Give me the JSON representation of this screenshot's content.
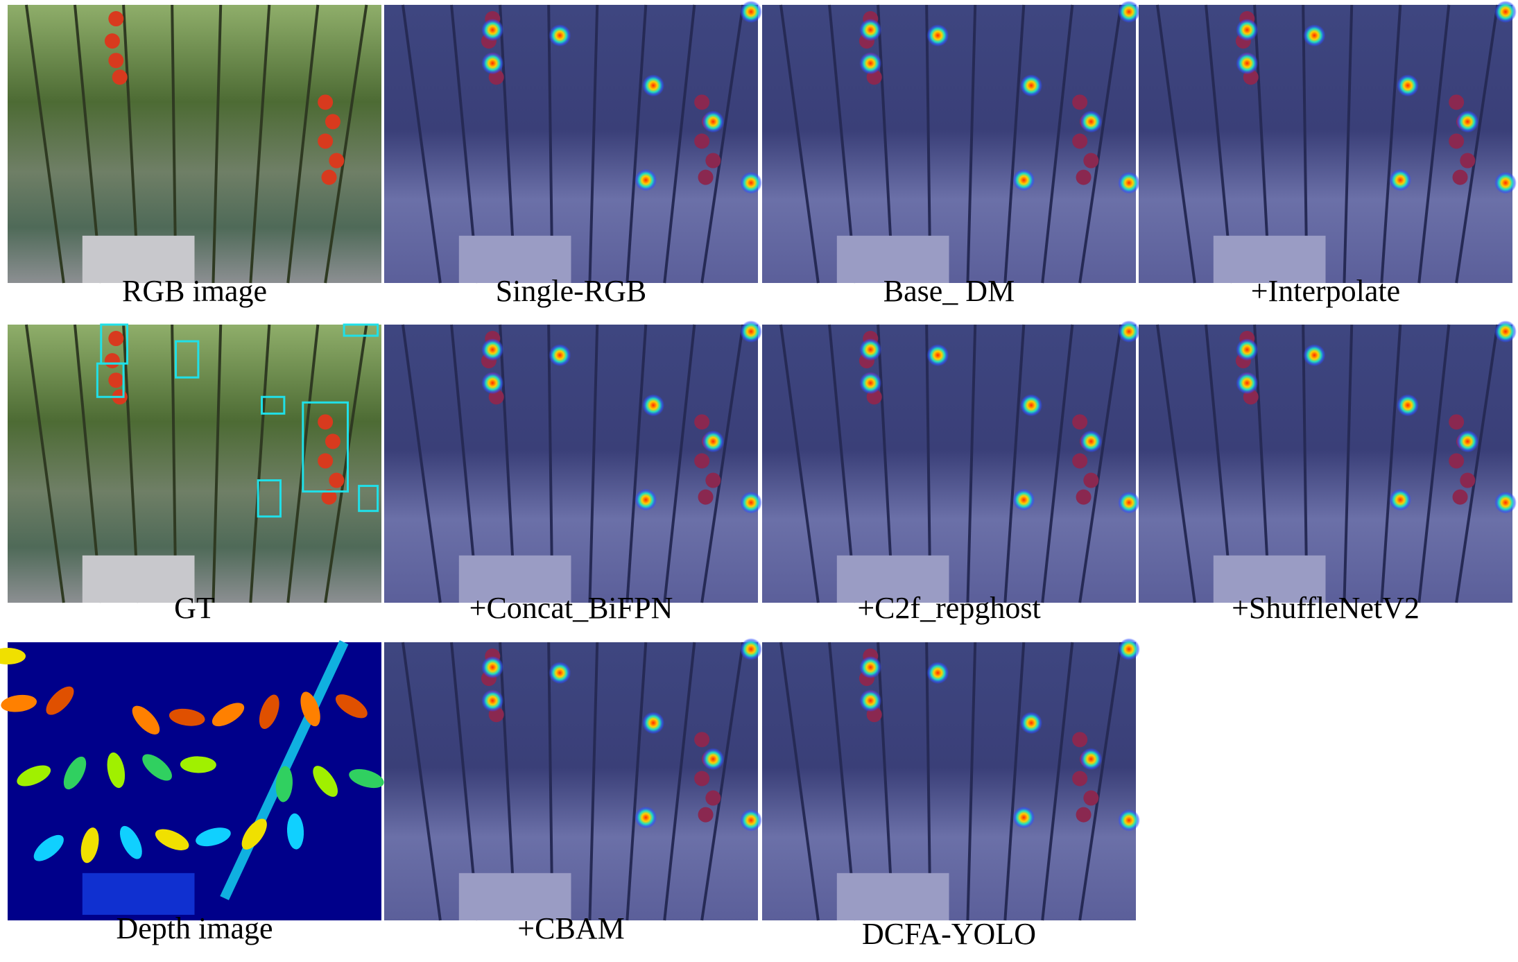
{
  "panels": [
    {
      "caption": "RGB image"
    },
    {
      "caption": "Single-RGB"
    },
    {
      "caption": "Base_ DM"
    },
    {
      "caption": "+Interpolate"
    },
    {
      "caption": "GT"
    },
    {
      "caption": "+Concat_BiFPN"
    },
    {
      "caption": "+C2f_repghost"
    },
    {
      "caption": "+ShuffleNetV2"
    },
    {
      "caption": "Depth image"
    },
    {
      "caption": "+CBAM"
    },
    {
      "caption": "DCFA-YOLO"
    }
  ]
}
